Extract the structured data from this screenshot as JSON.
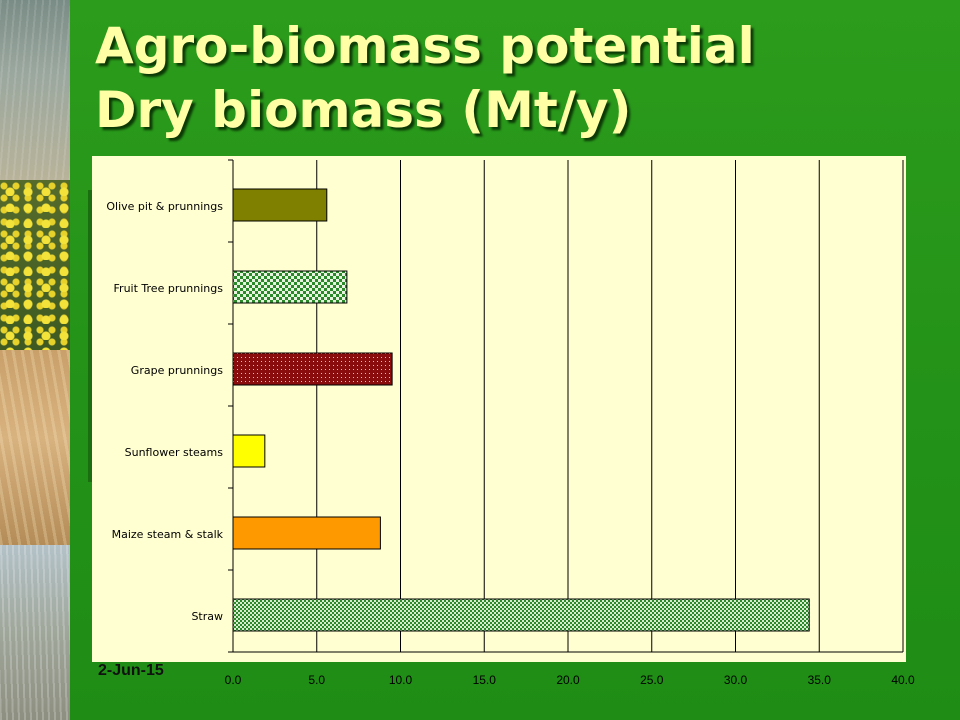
{
  "slide": {
    "title_line1": "Agro-biomass potential",
    "title_line2": "Dry biomass (Mt/y)",
    "date": "2-Jun-15"
  },
  "chart_data": {
    "type": "bar",
    "orientation": "horizontal",
    "categories": [
      "Olive pit & prunnings",
      "Fruit Tree prunnings",
      "Grape prunnings",
      "Sunflower steams",
      "Maize steam & stalk",
      "Straw"
    ],
    "values": [
      5.6,
      6.8,
      9.5,
      1.9,
      8.8,
      34.4
    ],
    "xlim": [
      0,
      40
    ],
    "x_ticks": [
      "0.0",
      "5.0",
      "10.0",
      "15.0",
      "20.0",
      "25.0",
      "30.0",
      "35.0",
      "40.0"
    ],
    "grid": true,
    "bar_colors": [
      "#7f7f00",
      "#2a8a2a",
      "#8a0c0c",
      "#ffff00",
      "#ff9900",
      "#2a8a2a"
    ],
    "bar_patterns": [
      "solid",
      "checker",
      "dots",
      "solid",
      "solid",
      "fine-checker"
    ]
  }
}
